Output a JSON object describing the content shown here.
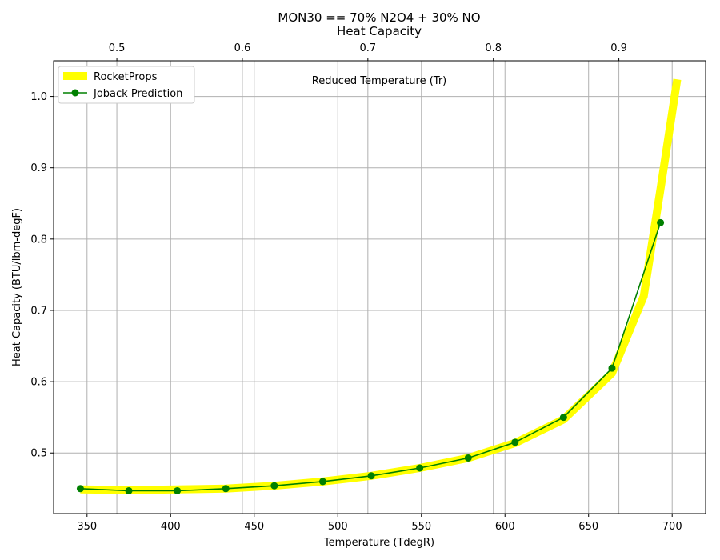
{
  "chart_data": {
    "type": "line",
    "title": "MON30 == 70% N2O4 + 30% NO",
    "subtitle": "Heat Capacity",
    "xlabel": "Temperature (TdegR)",
    "ylabel": "Heat Capacity (BTU/lbm-degF)",
    "x2label": "Reduced Temperature (Tr)",
    "xlim": [
      330,
      720
    ],
    "ylim": [
      0.415,
      1.05
    ],
    "x2lim": [
      0.4496,
      0.9691
    ],
    "xticks": [
      350,
      400,
      450,
      500,
      550,
      600,
      650,
      700
    ],
    "yticks": [
      0.5,
      0.6,
      0.7,
      0.8,
      0.9,
      1.0
    ],
    "x2ticks": [
      0.5,
      0.6,
      0.7,
      0.8,
      0.9
    ],
    "grid": true,
    "legend_position": "top-left",
    "series": [
      {
        "name": "RocketProps",
        "color": "#ffff00",
        "style": "thick-line",
        "x": [
          346,
          375,
          404,
          433,
          462,
          491,
          520,
          549,
          578,
          606,
          635,
          664,
          683,
          693,
          703
        ],
        "y": [
          0.449,
          0.448,
          0.449,
          0.45,
          0.454,
          0.46,
          0.468,
          0.479,
          0.493,
          0.514,
          0.547,
          0.612,
          0.72,
          0.87,
          1.024
        ]
      },
      {
        "name": "Joback Prediction",
        "color": "#008000",
        "style": "line-markers",
        "x": [
          346,
          375,
          404,
          433,
          462,
          491,
          520,
          549,
          578,
          606,
          635,
          664,
          693
        ],
        "y": [
          0.45,
          0.447,
          0.447,
          0.45,
          0.454,
          0.46,
          0.468,
          0.479,
          0.493,
          0.515,
          0.55,
          0.619,
          0.823
        ]
      }
    ]
  }
}
